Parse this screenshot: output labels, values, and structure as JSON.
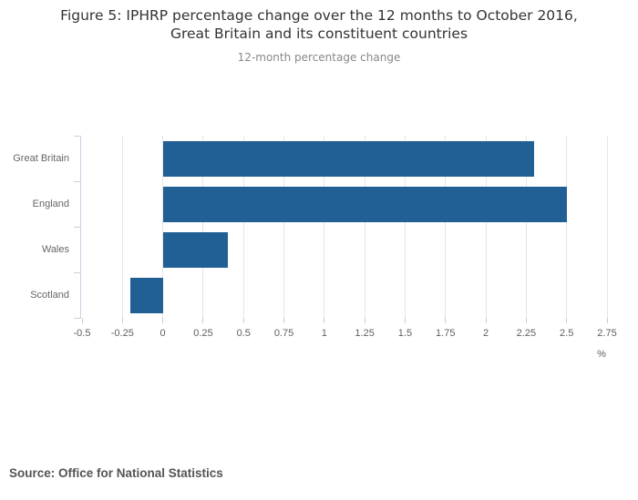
{
  "title_lines": [
    "Figure 5: IPHRP percentage change over the 12 months to October 2016,",
    "Great Britain and its constituent countries"
  ],
  "subtitle": "12-month percentage change",
  "source": "Source: Office for National Statistics",
  "colors": {
    "bar": "#206095",
    "gridline": "#e6e6e6",
    "axis_line": "#c7d3e0",
    "title_text": "#333333",
    "subtitle_text": "#888888",
    "axis_text": "#5f5f5f",
    "source_text": "#545454"
  },
  "chart_data": {
    "type": "bar",
    "orientation": "horizontal",
    "title": "Figure 5: IPHRP percentage change over the 12 months to October 2016, Great Britain and its constituent countries",
    "subtitle": "12-month percentage change",
    "categories": [
      "Great Britain",
      "England",
      "Wales",
      "Scotland"
    ],
    "values": [
      2.3,
      2.5,
      0.4,
      -0.2
    ],
    "xlabel": "%",
    "ylabel": "",
    "xlim": [
      -0.5,
      2.75
    ],
    "xticks": [
      "-0.5",
      "-0.25",
      "0",
      "0.25",
      "0.5",
      "0.75",
      "1",
      "1.25",
      "1.5",
      "1.75",
      "2",
      "2.25",
      "2.5",
      "2.75"
    ],
    "grid": true,
    "legend": "none",
    "bar_color": "#206095"
  }
}
